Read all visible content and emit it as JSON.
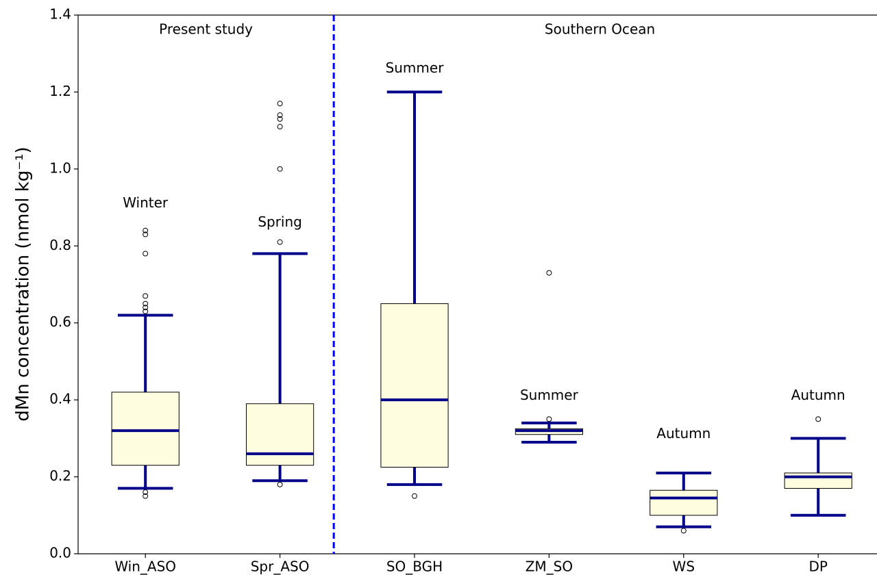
{
  "chart_data": {
    "type": "box",
    "y_label": "dMn concentration (nmol kg⁻¹)",
    "group_labels": [
      "Present study",
      "Southern Ocean"
    ],
    "categories": [
      "Win_ASO",
      "Spr_ASO",
      "SO_BGH",
      "ZM_SO",
      "WS",
      "DP"
    ],
    "season_labels": [
      "Winter",
      "Spring",
      "Summer",
      "Summer",
      "Autumn",
      "Autumn"
    ],
    "boxes": [
      {
        "low": 0.17,
        "q1": 0.23,
        "median": 0.32,
        "q3": 0.42,
        "high": 0.62,
        "outliers": [
          0.15,
          0.16,
          0.63,
          0.64,
          0.65,
          0.67,
          0.78,
          0.83,
          0.84
        ]
      },
      {
        "low": 0.19,
        "q1": 0.23,
        "median": 0.26,
        "q3": 0.39,
        "high": 0.78,
        "outliers": [
          0.18,
          0.81,
          1.0,
          1.11,
          1.13,
          1.14,
          1.17
        ]
      },
      {
        "low": 0.18,
        "q1": 0.225,
        "median": 0.4,
        "q3": 0.65,
        "high": 1.2,
        "outliers": [
          0.15
        ]
      },
      {
        "low": 0.29,
        "q1": 0.31,
        "median": 0.32,
        "q3": 0.325,
        "high": 0.34,
        "outliers": [
          0.35,
          0.73
        ]
      },
      {
        "low": 0.07,
        "q1": 0.1,
        "median": 0.145,
        "q3": 0.165,
        "high": 0.21,
        "outliers": [
          0.06
        ]
      },
      {
        "low": 0.1,
        "q1": 0.17,
        "median": 0.2,
        "q3": 0.21,
        "high": 0.3,
        "outliers": [
          0.35
        ]
      }
    ],
    "box_color": "#fffde0",
    "whisker_color": "#00008b",
    "divider_color": "#0000ff",
    "ylim": [
      0,
      1.4
    ],
    "yticks": [
      {
        "value": 0,
        "label": "0.0"
      },
      0.2,
      0.4,
      0.6,
      0.8,
      {
        "value": 1.0,
        "label": "1.0"
      },
      1.2,
      1.4
    ]
  }
}
